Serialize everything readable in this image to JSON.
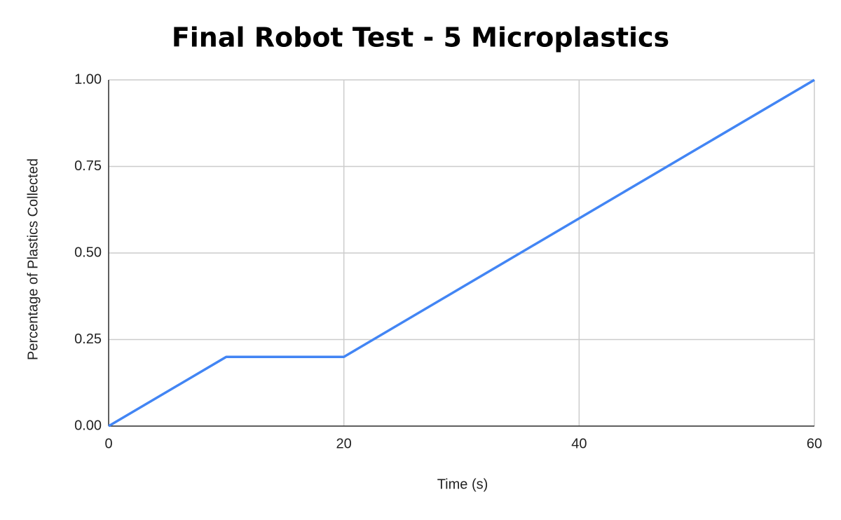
{
  "chart_data": {
    "type": "line",
    "title": "Final Robot Test - 5 Microplastics",
    "x_label": "Time (s)",
    "y_label": "Percentage of Plastics Collected",
    "x": [
      0,
      10,
      20,
      30,
      40,
      50,
      60
    ],
    "series": [
      {
        "name": "Percentage of Plastics Collected",
        "color": "#4285f4",
        "values": [
          0,
          0.2,
          0.2,
          0.4,
          0.6,
          0.8,
          1.0
        ]
      }
    ],
    "xlim": [
      0,
      60
    ],
    "xticks": [
      0,
      20,
      40,
      60
    ],
    "ylim": [
      0,
      1
    ],
    "yticks": [
      {
        "value": 0,
        "label": "0.00"
      },
      {
        "value": 0.25,
        "label": "0.25"
      },
      {
        "value": 0.5,
        "label": "0.50"
      },
      {
        "value": 0.75,
        "label": "0.75"
      },
      {
        "value": 1,
        "label": "1.00"
      }
    ],
    "grid": true
  }
}
